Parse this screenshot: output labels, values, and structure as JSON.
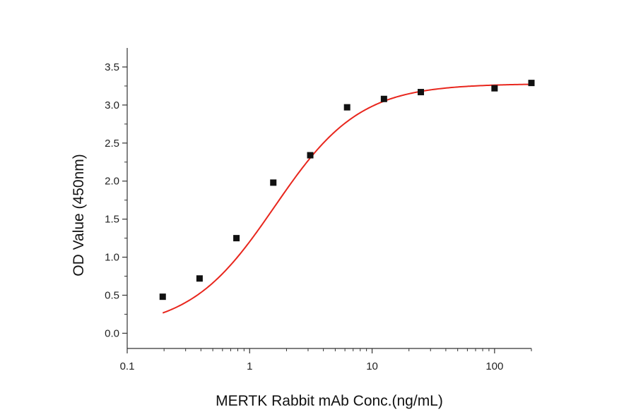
{
  "chart_data": {
    "type": "scatter",
    "title": "",
    "xlabel": "MERTK Rabbit mAb Conc.(ng/mL)",
    "ylabel": "OD Value (450nm)",
    "xscale": "log",
    "xlim": [
      0.1,
      200
    ],
    "ylim": [
      -0.2,
      3.75
    ],
    "xticks": [
      0.1,
      1,
      10,
      100
    ],
    "xtick_labels": [
      "0.1",
      "1",
      "10",
      "100"
    ],
    "yticks": [
      0.0,
      0.5,
      1.0,
      1.5,
      2.0,
      2.5,
      3.0,
      3.5
    ],
    "ytick_labels": [
      "0.0",
      "0.5",
      "1.0",
      "1.5",
      "2.0",
      "2.5",
      "3.0",
      "3.5"
    ],
    "grid": false,
    "legend": "none",
    "series": [
      {
        "marker": "square",
        "color": "#111111",
        "x": [
          0.195,
          0.39,
          0.78,
          1.56,
          3.125,
          6.25,
          12.5,
          25,
          100,
          200
        ],
        "y": [
          0.48,
          0.72,
          1.25,
          1.98,
          2.34,
          2.97,
          3.08,
          3.17,
          3.22,
          3.29
        ]
      }
    ],
    "fit_curve": {
      "model": "4PL",
      "color": "#e8261d",
      "bottom": 0.05,
      "top": 3.28,
      "ec50": 1.6,
      "hill": 1.25,
      "x_range": [
        0.195,
        200
      ]
    }
  }
}
